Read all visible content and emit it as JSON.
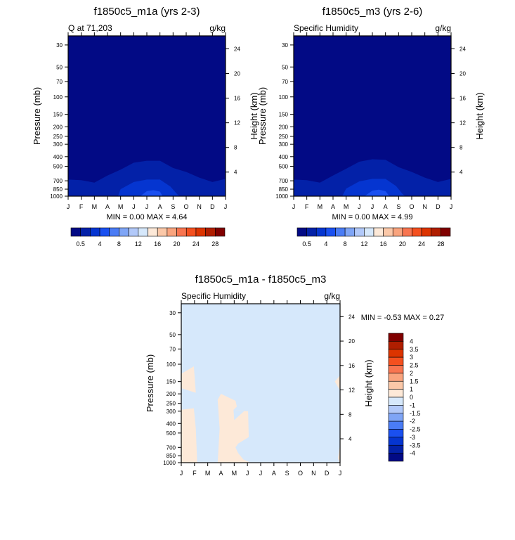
{
  "chart_data": [
    {
      "type": "contour",
      "title": "f1850c5_m1a (yrs 2-3)",
      "subtitle_left": "Q at 71,203",
      "subtitle_right": "g/kg",
      "ylabel": "Pressure (mb)",
      "ylabel_right": "Height (km)",
      "stats": "MIN =   0.00 MAX =   4.64",
      "regions": [
        {
          "level": 1,
          "points": [
            [
              0,
              1000
            ],
            [
              0,
              680
            ],
            [
              1,
              690
            ],
            [
              2,
              730
            ],
            [
              3,
              620
            ],
            [
              4,
              540
            ],
            [
              5,
              460
            ],
            [
              6,
              440
            ],
            [
              7,
              440
            ],
            [
              8,
              520
            ],
            [
              9,
              570
            ],
            [
              10,
              650
            ],
            [
              11,
              720
            ],
            [
              12,
              670
            ],
            [
              12,
              1000
            ]
          ]
        },
        {
          "level": 2,
          "points": [
            [
              3.8,
              1000
            ],
            [
              4,
              850
            ],
            [
              5,
              720
            ],
            [
              6,
              680
            ],
            [
              7,
              680
            ],
            [
              7.8,
              800
            ],
            [
              8.3,
              950
            ],
            [
              8.5,
              1000
            ]
          ]
        },
        {
          "level": 3,
          "points": [
            [
              5.5,
              1000
            ],
            [
              6,
              890
            ],
            [
              6.5,
              870
            ],
            [
              7,
              900
            ],
            [
              7.2,
              1000
            ]
          ]
        }
      ]
    },
    {
      "type": "contour",
      "title": "f1850c5_m3 (yrs 2-6)",
      "subtitle_left": "Specific Humidity",
      "subtitle_right": "g/kg",
      "ylabel": "Pressure (mb)",
      "ylabel_right": "Height (km)",
      "stats": "MIN =   0.00 MAX =   4.99",
      "regions": [
        {
          "level": 1,
          "points": [
            [
              0,
              1000
            ],
            [
              0,
              680
            ],
            [
              1,
              690
            ],
            [
              2,
              730
            ],
            [
              3,
              620
            ],
            [
              4,
              530
            ],
            [
              5,
              450
            ],
            [
              6,
              425
            ],
            [
              7,
              430
            ],
            [
              8,
              510
            ],
            [
              9,
              570
            ],
            [
              10,
              650
            ],
            [
              11,
              720
            ],
            [
              12,
              670
            ],
            [
              12,
              1000
            ]
          ]
        },
        {
          "level": 2,
          "points": [
            [
              3.7,
              1000
            ],
            [
              4,
              840
            ],
            [
              5,
              710
            ],
            [
              6,
              670
            ],
            [
              7,
              670
            ],
            [
              7.8,
              790
            ],
            [
              8.3,
              950
            ],
            [
              8.5,
              1000
            ]
          ]
        },
        {
          "level": 3,
          "points": [
            [
              5.4,
              1000
            ],
            [
              6,
              880
            ],
            [
              6.5,
              860
            ],
            [
              7,
              890
            ],
            [
              7.3,
              1000
            ]
          ]
        }
      ]
    },
    {
      "type": "contour",
      "title": "f1850c5_m1a - f1850c5_m3",
      "subtitle_left": "Specific Humidity",
      "subtitle_right": "g/kg",
      "ylabel": "Pressure (mb)",
      "ylabel_right": "Height (km)",
      "stats": "MIN =  -0.53 MAX =   0.27",
      "background_level": 7,
      "regions": [
        {
          "level": 8,
          "points": [
            [
              0,
              125
            ],
            [
              0.95,
              105
            ],
            [
              1.1,
              195
            ],
            [
              0,
              175
            ]
          ]
        },
        {
          "level": 8,
          "points": [
            [
              0,
              290
            ],
            [
              0.95,
              280
            ],
            [
              1.1,
              450
            ],
            [
              1.2,
              1000
            ],
            [
              0,
              1000
            ]
          ]
        },
        {
          "level": 8,
          "points": [
            [
              2.75,
              1000
            ],
            [
              2.9,
              450
            ],
            [
              2.75,
              230
            ],
            [
              3,
              200
            ],
            [
              4.1,
              235
            ],
            [
              4.2,
              270
            ],
            [
              3.95,
              290
            ],
            [
              4.9,
              300
            ],
            [
              5.05,
              300
            ],
            [
              5.1,
              550
            ],
            [
              4.3,
              640
            ],
            [
              4.1,
              700
            ],
            [
              4.3,
              800
            ],
            [
              4.7,
              930
            ],
            [
              5.25,
              1000
            ]
          ]
        },
        {
          "level": 7,
          "points": [
            [
              3.95,
              290
            ],
            [
              4.75,
              300
            ],
            [
              4.0,
              370
            ]
          ]
        },
        {
          "level": 8,
          "points": [
            [
              12,
              130
            ],
            [
              11.6,
              150
            ],
            [
              12,
              185
            ]
          ]
        },
        {
          "level": 8,
          "points": [
            [
              12,
              650
            ],
            [
              11.85,
              900
            ],
            [
              11.95,
              1000
            ],
            [
              12,
              1000
            ]
          ]
        }
      ]
    }
  ],
  "months": [
    "J",
    "F",
    "M",
    "A",
    "M",
    "J",
    "J",
    "A",
    "S",
    "O",
    "N",
    "D",
    "J"
  ],
  "pressure_ticks": [
    "30",
    "50",
    "70",
    "100",
    "150",
    "200",
    "250",
    "300",
    "400",
    "500",
    "700",
    "850",
    "1000"
  ],
  "height_ticks": [
    "24",
    "20",
    "16",
    "12",
    "8",
    "4"
  ],
  "colorbar_abs": {
    "labels": [
      "0.5",
      "4",
      "8",
      "12",
      "16",
      "20",
      "24",
      "28"
    ]
  },
  "colorbar_diff": {
    "labels": [
      "4",
      "3.5",
      "3",
      "2.5",
      "2",
      "1.5",
      "1",
      "0",
      "-1",
      "-1.5",
      "-2",
      "-2.5",
      "-3",
      "-3.5",
      "-4"
    ]
  },
  "colors": [
    "#020a85",
    "#0321a8",
    "#0535d0",
    "#1a50f0",
    "#4a7cf5",
    "#7fa5f6",
    "#b2c9f9",
    "#d6e8fb",
    "#fde9d8",
    "#fbc8a8",
    "#f9a47e",
    "#f87550",
    "#f4501f",
    "#dc3400",
    "#b01e00",
    "#800000"
  ]
}
